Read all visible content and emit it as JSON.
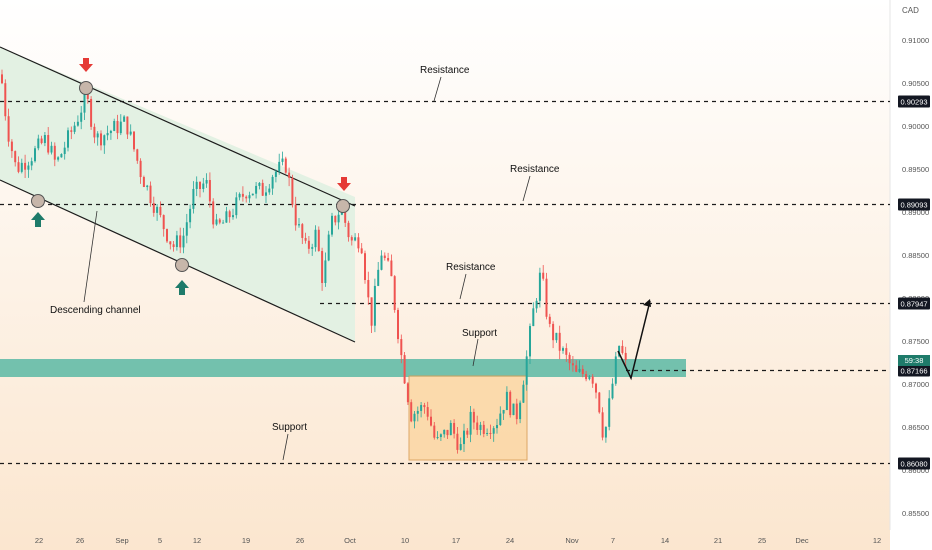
{
  "currency_label": "CAD",
  "colors": {
    "bull": "#26a69a",
    "bear": "#ef5350",
    "channel_fill": "#e3f1e3",
    "support_zone": "#5ab9a4",
    "range_box": "#fbd7a4",
    "bg_top": "#ffffff",
    "bg_bottom": "#fbe6cf"
  },
  "chart_data": {
    "type": "candlestick",
    "x_ticks": [
      "22",
      "26",
      "Sep",
      "5",
      "12",
      "19",
      "26",
      "Oct",
      "10",
      "17",
      "24",
      "Nov",
      "7",
      "14",
      "21",
      "25",
      "Dec",
      "12"
    ],
    "y_ticks": [
      "0.91000",
      "0.90500",
      "0.90000",
      "0.89500",
      "0.89000",
      "0.88500",
      "0.88000",
      "0.87500",
      "0.87000",
      "0.86500",
      "0.86000",
      "0.85500"
    ],
    "ylim": [
      0.8525,
      0.9125
    ],
    "price_labels": [
      {
        "value": 0.90293,
        "text": "0.90293"
      },
      {
        "value": 0.89093,
        "text": "0.89093"
      },
      {
        "value": 0.87947,
        "text": "0.87947"
      },
      {
        "value": 0.87166,
        "text": "0.87166"
      },
      {
        "value": 0.8608,
        "text": "0.86080"
      }
    ],
    "countdown": "59:38",
    "annotations": {
      "resistance_1": "Resistance",
      "resistance_2": "Resistance",
      "resistance_3": "Resistance",
      "support_1": "Support",
      "support_2": "Support",
      "channel": "Descending channel"
    }
  }
}
